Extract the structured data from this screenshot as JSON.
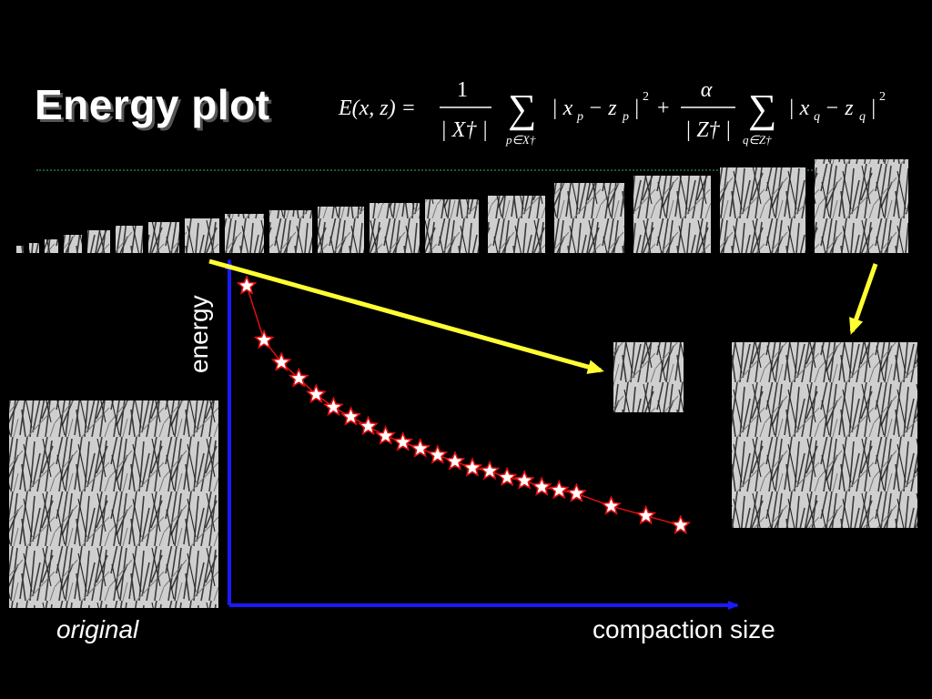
{
  "slide": {
    "title": "Energy plot",
    "original_label": "original",
    "formula": {
      "lhs": "E(x, z) =",
      "frac1_num": "1",
      "frac1_den": "| X† |",
      "sum1_sub": "p∈X†",
      "term1": "| x",
      "term1_sub_x": "p",
      "term1_minus": "− z",
      "term1_sub_z": "p",
      "term1_end": "|",
      "sq": "2",
      "plus": "+",
      "frac2_num": "α",
      "frac2_den": "| Z† |",
      "sum2_sub": "q∈Z†",
      "term2": "| x",
      "term2_sub_x": "q",
      "term2_minus": "− z",
      "term2_sub_z": "q",
      "term2_end": "|"
    }
  },
  "chart_data": {
    "type": "line",
    "title": "",
    "xlabel": "compaction size",
    "ylabel": "energy",
    "series": [
      {
        "marker": "star",
        "color": "#e01010",
        "points": [
          [
            1,
            100
          ],
          [
            2,
            83
          ],
          [
            3,
            76
          ],
          [
            4,
            71
          ],
          [
            5,
            66
          ],
          [
            6,
            62
          ],
          [
            7,
            59
          ],
          [
            8,
            56
          ],
          [
            9,
            53
          ],
          [
            10,
            51
          ],
          [
            11,
            49
          ],
          [
            12,
            47
          ],
          [
            13,
            45
          ],
          [
            14,
            43
          ],
          [
            15,
            42
          ],
          [
            16,
            40
          ],
          [
            17,
            39
          ],
          [
            18,
            37
          ],
          [
            19,
            36
          ],
          [
            20,
            35
          ],
          [
            22,
            31
          ],
          [
            24,
            28
          ],
          [
            26,
            25
          ]
        ]
      }
    ],
    "xlim": [
      0,
      29
    ],
    "ylim": [
      0,
      108
    ],
    "axis_color": "#1a1aff",
    "arrow_color": "#ffff33",
    "thumbnails": 20
  }
}
